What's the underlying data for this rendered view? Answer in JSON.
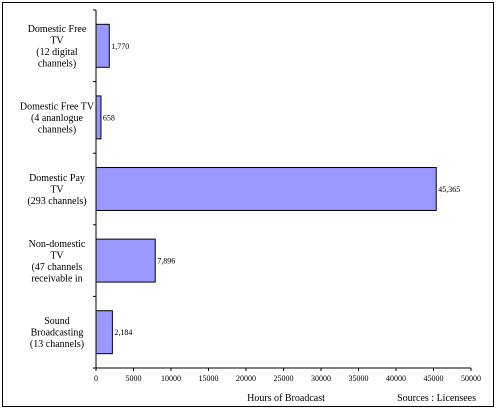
{
  "chart_data": {
    "type": "bar",
    "orientation": "horizontal",
    "categories": [
      [
        "Domestic Free",
        "TV",
        "(12 digital",
        "channels)"
      ],
      [
        "Domestic Free TV",
        "(4 ananlogue",
        "channels)"
      ],
      [
        "Domestic Pay",
        "TV",
        "(293 channels)"
      ],
      [
        "Non-domestic",
        "TV",
        "(47 channels",
        "receivable in"
      ],
      [
        "Sound",
        "Broadcasting",
        "(13 channels)"
      ]
    ],
    "values": [
      1770,
      658,
      45365,
      7896,
      2184
    ],
    "value_labels": [
      "1,770",
      "658",
      "45,365",
      "7,896",
      "2,184"
    ],
    "xlabel": "Hours of Broadcast",
    "source": "Sources : Licensees",
    "xlim": [
      0,
      50000
    ],
    "xticks": [
      0,
      5000,
      10000,
      15000,
      20000,
      25000,
      30000,
      35000,
      40000,
      45000,
      50000
    ],
    "xtick_labels": [
      "0",
      "5000",
      "10000",
      "15000",
      "20000",
      "25000",
      "30000",
      "35000",
      "40000",
      "45000",
      "50000"
    ],
    "bar_color": "#9999ff",
    "grid": false
  }
}
